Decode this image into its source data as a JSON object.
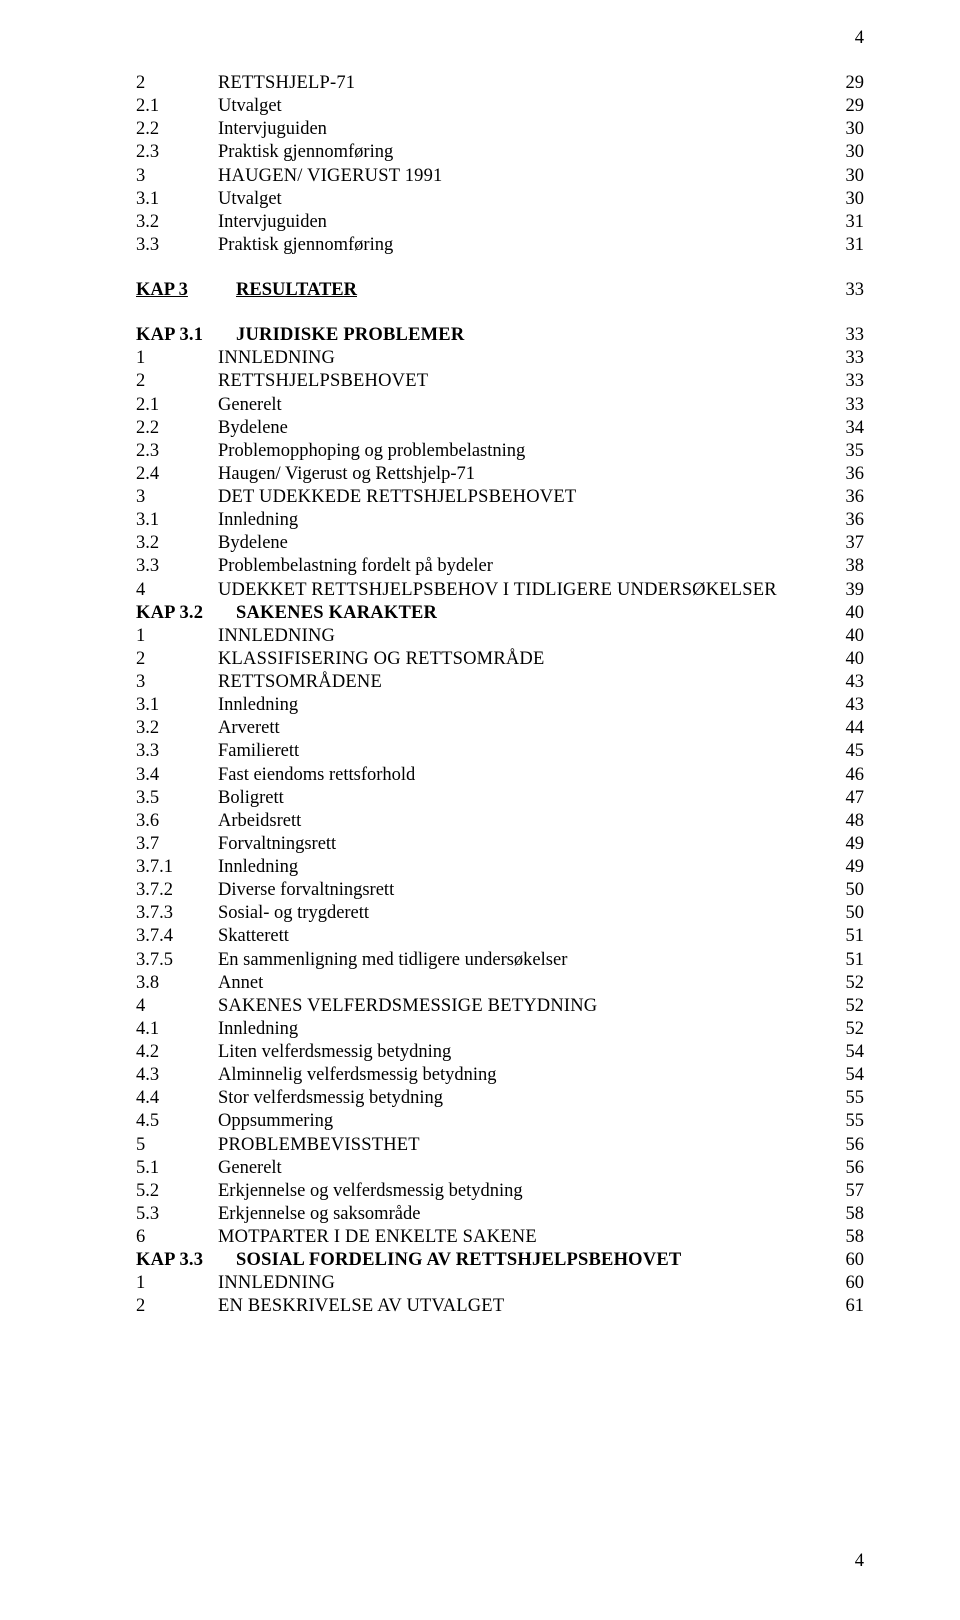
{
  "pageNumberTop": "4",
  "pageNumberBottom": "4",
  "layout": {
    "numColWidthDefault": 78,
    "numColWidthKap": 96
  },
  "rows": [
    {
      "num": "2",
      "title": "RETTSHJELP-71",
      "page": "29",
      "sc": true
    },
    {
      "num": "2.1",
      "title": "Utvalget",
      "page": "29"
    },
    {
      "num": "2.2",
      "title": "Intervjuguiden",
      "page": "30"
    },
    {
      "num": "2.3",
      "title": "Praktisk gjennomføring",
      "page": "30"
    },
    {
      "num": "3",
      "title": "HAUGEN/ VIGERUST 1991",
      "page": "30",
      "sc": true
    },
    {
      "num": "3.1",
      "title": "Utvalget",
      "page": "30"
    },
    {
      "num": "3.2",
      "title": "Intervjuguiden",
      "page": "31"
    },
    {
      "num": "3.3",
      "title": "Praktisk gjennomføring",
      "page": "31"
    },
    {
      "type": "spacer"
    },
    {
      "type": "chapter",
      "num": "KAP 3",
      "title": "RESULTATER",
      "page": "33"
    },
    {
      "type": "spacer"
    },
    {
      "type": "kap",
      "num": "KAP 3.1",
      "title": "JURIDISKE PROBLEMER",
      "page": "33"
    },
    {
      "num": "1",
      "title": "INNLEDNING",
      "page": "33",
      "sc": true
    },
    {
      "num": "2",
      "title": "RETTSHJELPSBEHOVET",
      "page": "33",
      "sc": true
    },
    {
      "num": "2.1",
      "title": "Generelt",
      "page": "33"
    },
    {
      "num": "2.2",
      "title": "Bydelene",
      "page": "34"
    },
    {
      "num": "2.3",
      "title": "Problemopphoping og problembelastning",
      "page": "35"
    },
    {
      "num": "2.4",
      "title": "Haugen/ Vigerust og Rettshjelp-71",
      "page": "36"
    },
    {
      "num": "3",
      "title": "DET UDEKKEDE RETTSHJELPSBEHOVET",
      "page": "36",
      "sc": true
    },
    {
      "num": "3.1",
      "title": "Innledning",
      "page": "36"
    },
    {
      "num": "3.2",
      "title": "Bydelene",
      "page": "37"
    },
    {
      "num": "3.3",
      "title": "Problembelastning fordelt på bydeler",
      "page": "38"
    },
    {
      "num": "4",
      "title": "UDEKKET RETTSHJELPSBEHOV I TIDLIGERE UNDERSØKELSER",
      "page": "39",
      "sc": true
    },
    {
      "type": "kap",
      "num": "KAP 3.2",
      "title": "SAKENES KARAKTER",
      "page": "40"
    },
    {
      "num": "1",
      "title": "INNLEDNING",
      "page": "40",
      "sc": true
    },
    {
      "num": "2",
      "title": "KLASSIFISERING OG RETTSOMRÅDE",
      "page": "40",
      "sc": true
    },
    {
      "num": "3",
      "title": "RETTSOMRÅDENE",
      "page": "43",
      "sc": true
    },
    {
      "num": "3.1",
      "title": "Innledning",
      "page": "43"
    },
    {
      "num": "3.2",
      "title": "Arverett",
      "page": "44"
    },
    {
      "num": "3.3",
      "title": "Familierett",
      "page": "45"
    },
    {
      "num": "3.4",
      "title": "Fast eiendoms rettsforhold",
      "page": "46"
    },
    {
      "num": "3.5",
      "title": "Boligrett",
      "page": "47"
    },
    {
      "num": "3.6",
      "title": "Arbeidsrett",
      "page": "48"
    },
    {
      "num": "3.7",
      "title": "Forvaltningsrett",
      "page": "49"
    },
    {
      "num": "3.7.1",
      "title": "Innledning",
      "page": "49"
    },
    {
      "num": "3.7.2",
      "title": "Diverse forvaltningsrett",
      "page": "50"
    },
    {
      "num": "3.7.3",
      "title": "Sosial- og trygderett",
      "page": "50"
    },
    {
      "num": "3.7.4",
      "title": "Skatterett",
      "page": "51"
    },
    {
      "num": "3.7.5",
      "title": "En sammenligning med tidligere undersøkelser",
      "page": "51"
    },
    {
      "num": "3.8",
      "title": "Annet",
      "page": "52"
    },
    {
      "num": "4",
      "title": "SAKENES VELFERDSMESSIGE BETYDNING",
      "page": "52",
      "sc": true
    },
    {
      "num": "4.1",
      "title": "Innledning",
      "page": "52"
    },
    {
      "num": "4.2",
      "title": "Liten velferdsmessig betydning",
      "page": "54"
    },
    {
      "num": "4.3",
      "title": "Alminnelig velferdsmessig betydning",
      "page": "54"
    },
    {
      "num": "4.4",
      "title": "Stor velferdsmessig betydning",
      "page": "55"
    },
    {
      "num": "4.5",
      "title": "Oppsummering",
      "page": "55"
    },
    {
      "num": "5",
      "title": "PROBLEMBEVISSTHET",
      "page": "56",
      "sc": true
    },
    {
      "num": "5.1",
      "title": "Generelt",
      "page": "56"
    },
    {
      "num": "5.2",
      "title": "Erkjennelse og velferdsmessig betydning",
      "page": "57"
    },
    {
      "num": "5.3",
      "title": "Erkjennelse og saksområde",
      "page": "58"
    },
    {
      "num": "6",
      "title": "MOTPARTER I DE ENKELTE SAKENE",
      "page": "58",
      "sc": true
    },
    {
      "type": "kap",
      "num": "KAP 3.3",
      "title": "SOSIAL FORDELING AV RETTSHJELPSBEHOVET",
      "page": "60"
    },
    {
      "num": "1",
      "title": "INNLEDNING",
      "page": "60",
      "sc": true
    },
    {
      "num": "2",
      "title": "EN BESKRIVELSE AV UTVALGET",
      "page": "61",
      "sc": true
    }
  ]
}
